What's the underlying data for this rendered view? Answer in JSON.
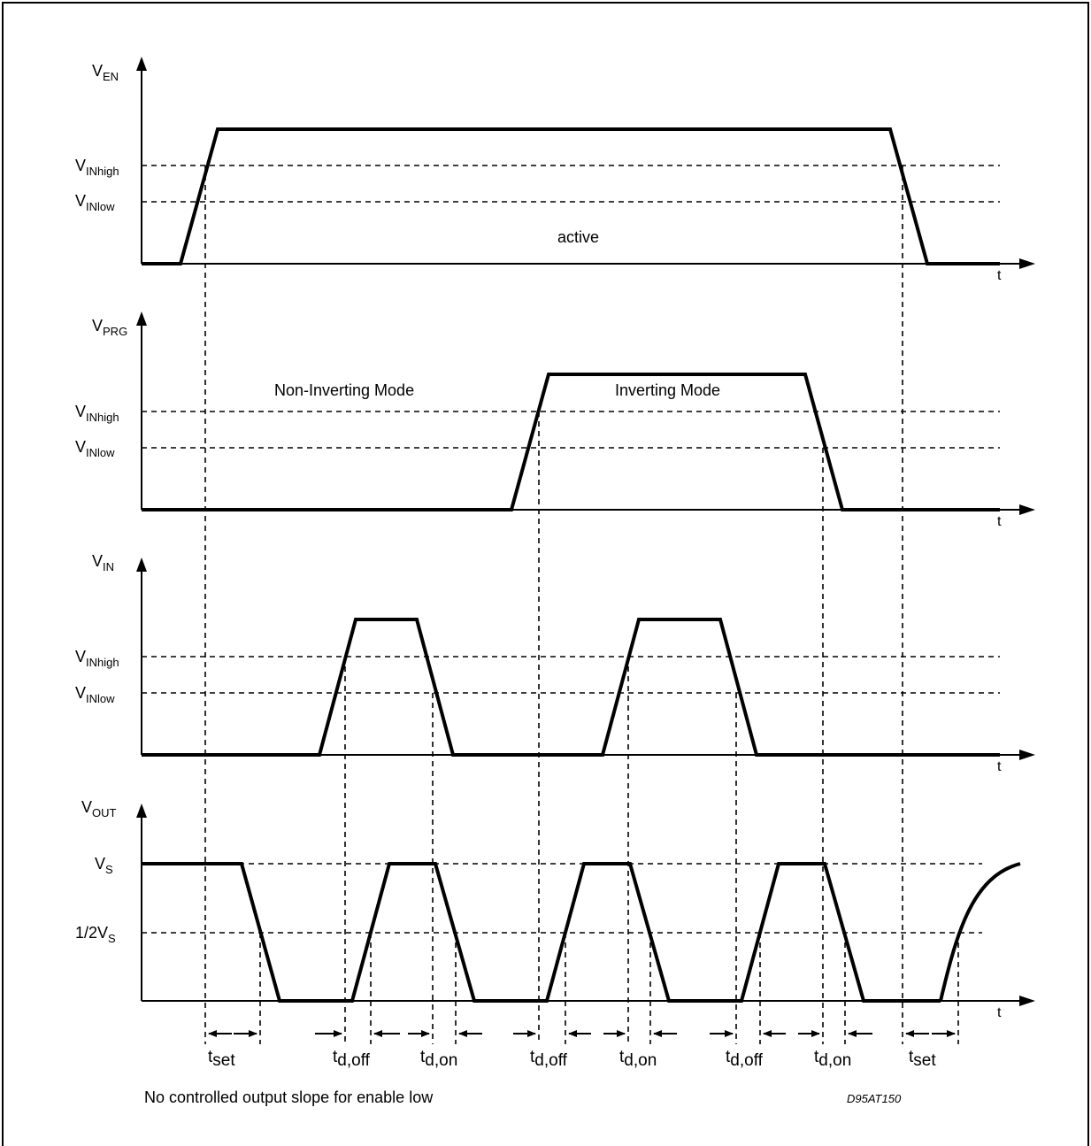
{
  "figure_id": "D95AT150",
  "footnote": "No controlled output slope for enable low",
  "time_axis_label": "t",
  "charts": {
    "en": {
      "v": "V",
      "sub": "EN",
      "levels": [
        {
          "v": "V",
          "sub": "INhigh"
        },
        {
          "v": "V",
          "sub": "INlow"
        }
      ],
      "annotations": [
        "active"
      ]
    },
    "prg": {
      "v": "V",
      "sub": "PRG",
      "levels": [
        {
          "v": "V",
          "sub": "INhigh"
        },
        {
          "v": "V",
          "sub": "INlow"
        }
      ],
      "annotations": [
        "Non-Inverting Mode",
        "Inverting Mode"
      ]
    },
    "in": {
      "v": "V",
      "sub": "IN",
      "levels": [
        {
          "v": "V",
          "sub": "INhigh"
        },
        {
          "v": "V",
          "sub": "INlow"
        }
      ]
    },
    "out": {
      "v": "V",
      "sub": "OUT",
      "levels": [
        {
          "v": "V",
          "sub": "S"
        },
        {
          "v": "1/2V",
          "sub": "S"
        }
      ]
    }
  },
  "timings": [
    {
      "t": "t",
      "sub": "set"
    },
    {
      "t": "t",
      "sub": "d,off"
    },
    {
      "t": "t",
      "sub": "d,on"
    },
    {
      "t": "t",
      "sub": "d,off"
    },
    {
      "t": "t",
      "sub": "d,on"
    },
    {
      "t": "t",
      "sub": "d,off"
    },
    {
      "t": "t",
      "sub": "d,on"
    },
    {
      "t": "t",
      "sub": "set"
    }
  ]
}
